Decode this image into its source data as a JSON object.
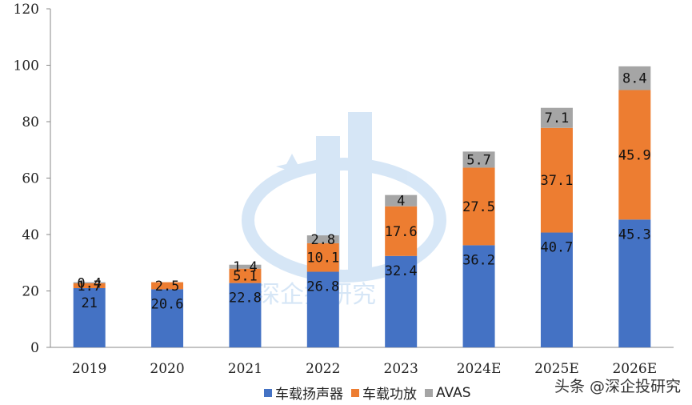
{
  "chart_data": {
    "type": "bar",
    "stacked": true,
    "categories": [
      "2019",
      "2020",
      "2021",
      "2022",
      "2023",
      "2024E",
      "2025E",
      "2026E"
    ],
    "series": [
      {
        "name": "车载扬声器",
        "color": "#4472C4",
        "values": [
          21,
          20.6,
          22.8,
          26.8,
          32.4,
          36.2,
          40.7,
          45.3
        ],
        "labels": [
          "21",
          "20.6",
          "22.8",
          "26.8",
          "32.4",
          "36.2",
          "40.7",
          "45.3"
        ]
      },
      {
        "name": "车载功放",
        "color": "#ED7D31",
        "values": [
          1.7,
          2.5,
          5.1,
          10.1,
          17.6,
          27.5,
          37.1,
          45.9
        ],
        "labels": [
          "1.7",
          "2.5",
          "5.1",
          "10.1",
          "17.6",
          "27.5",
          "37.1",
          "45.9"
        ]
      },
      {
        "name": "AVAS",
        "color": "#A5A5A5",
        "values": [
          0.4,
          0,
          1.4,
          2.8,
          4,
          5.7,
          7.1,
          8.4
        ],
        "labels": [
          "0.4",
          "0",
          "1.4",
          "2.8",
          "4",
          "5.7",
          "7.1",
          "8.4"
        ]
      }
    ],
    "ylim": [
      0,
      120
    ],
    "yticks": [
      0,
      20,
      40,
      60,
      80,
      100,
      120
    ],
    "legend_position": "bottom"
  },
  "watermark_text": "深企投研究",
  "source_label": "头条 @深企投研究"
}
